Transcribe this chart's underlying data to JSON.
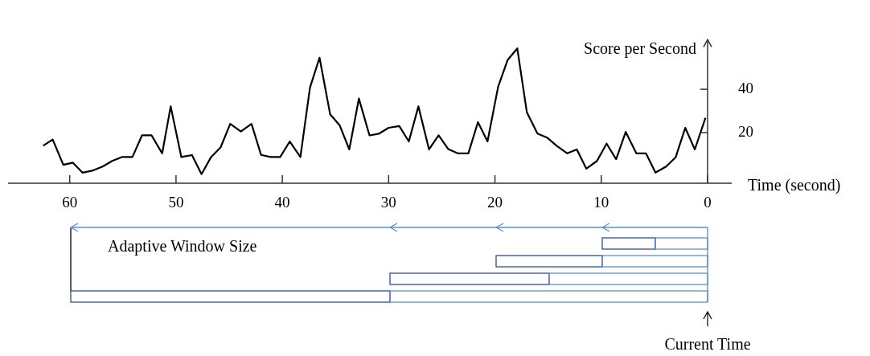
{
  "chart_data": {
    "type": "line",
    "ylabel": "Score per Second",
    "xlabel": "Time (second)",
    "xlim": [
      65.8,
      0
    ],
    "xticks": [
      60,
      50,
      40,
      30,
      20,
      10,
      0
    ],
    "ylim": [
      -3.4,
      62.9
    ],
    "yticks": [
      20,
      40
    ],
    "grid": false,
    "legend": false,
    "marker": "none",
    "line_style": "solid",
    "annotations": [
      "Adaptive Window Size",
      "Current Time"
    ],
    "series": [
      {
        "color": "#000000",
        "x": [
          62.5,
          61.6,
          60.6,
          59.7,
          58.8,
          57.8,
          56.9,
          56.0,
          55.1,
          54.1,
          53.2,
          52.3,
          51.3,
          50.5,
          49.5,
          48.5,
          47.6,
          46.7,
          45.8,
          44.9,
          43.9,
          42.9,
          42.0,
          41.1,
          40.2,
          39.3,
          38.3,
          37.4,
          36.5,
          35.5,
          34.6,
          33.7,
          32.8,
          31.8,
          30.9,
          30.0,
          29.0,
          28.1,
          27.2,
          26.2,
          25.3,
          24.4,
          23.5,
          22.5,
          21.6,
          20.7,
          19.7,
          18.8,
          17.9,
          17.0,
          16.0,
          15.1,
          14.2,
          13.2,
          12.3,
          11.4,
          10.4,
          9.5,
          8.6,
          7.7,
          6.7,
          5.8,
          4.9,
          3.9,
          3.0,
          2.1,
          1.2,
          0.2
        ],
        "values": [
          13.9,
          16.8,
          5.1,
          6.1,
          1.5,
          2.5,
          4.3,
          6.9,
          8.7,
          8.7,
          18.7,
          18.7,
          10.4,
          32.1,
          8.7,
          9.6,
          0.8,
          8.7,
          13.2,
          24.0,
          20.5,
          24.0,
          9.7,
          8.7,
          8.7,
          15.9,
          8.7,
          40.7,
          54.6,
          28.4,
          23.3,
          12.2,
          35.7,
          18.7,
          19.5,
          22.2,
          23.0,
          15.9,
          32.1,
          12.2,
          18.7,
          12.4,
          10.4,
          10.4,
          24.8,
          15.9,
          41.2,
          53.6,
          58.9,
          29.4,
          19.5,
          17.7,
          13.9,
          10.4,
          12.2,
          3.3,
          6.9,
          14.9,
          7.7,
          20.3,
          10.4,
          10.4,
          1.5,
          4.3,
          8.6,
          22.2,
          12.2,
          26.8
        ]
      }
    ]
  }
}
